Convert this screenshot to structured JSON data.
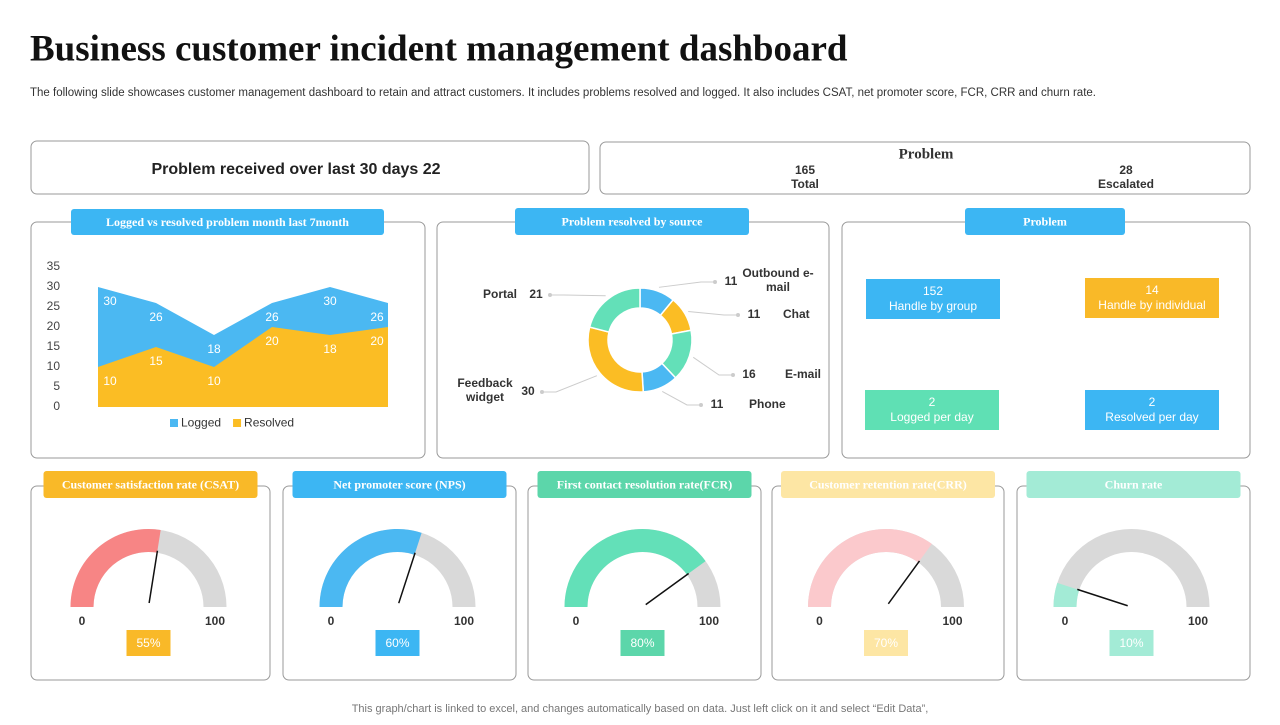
{
  "title": "Business customer incident management dashboard",
  "subtitle": "The following slide showcases customer management dashboard to retain and attract customers. It includes problems resolved and logged. It also includes CSAT, net promoter score, FCR, CRR and churn rate.",
  "summary": "Problem received over last 30 days 22",
  "problem_totals": {
    "title": "Problem",
    "items": [
      {
        "value": 165,
        "label": "Total"
      },
      {
        "value": 28,
        "label": "Escalated"
      }
    ]
  },
  "problem_panel": {
    "title": "Problem",
    "tiles": [
      {
        "value": 152,
        "label": "Handle by group",
        "color": "#3cb6f3"
      },
      {
        "value": 14,
        "label": "Handle by individual",
        "color": "#f9b928"
      },
      {
        "value": 2,
        "label": "Logged per day",
        "color": "#5fe0b4"
      },
      {
        "value": 2,
        "label": "Resolved per day",
        "color": "#3cb6f3"
      }
    ]
  },
  "chart_data": [
    {
      "type": "area",
      "title": "Logged vs resolved problem month last 7month",
      "categories": [
        null,
        null,
        null,
        null,
        null,
        null
      ],
      "series": [
        {
          "name": "Logged",
          "color": "#4bb8f2",
          "values": [
            30,
            26,
            18,
            26,
            30,
            26
          ]
        },
        {
          "name": "Resolved",
          "color": "#fbbd24",
          "values": [
            10,
            15,
            10,
            20,
            18,
            20
          ]
        }
      ],
      "ylim": [
        0,
        35
      ],
      "yticks": [
        0,
        5,
        10,
        15,
        20,
        25,
        30,
        35
      ],
      "grid": false,
      "legend": "bottom"
    },
    {
      "type": "donut",
      "title": "Problem resolved by source",
      "categories": [
        "Outbound e-mail",
        "Chat",
        "E-mail",
        "Phone",
        "Feedback widget",
        "Portal"
      ],
      "values": [
        11,
        11,
        16,
        11,
        30,
        21
      ],
      "colors": [
        "#4bb8f2",
        "#fbbd24",
        "#63e0b8",
        "#4bb8f2",
        "#fbbd24",
        "#63e0b8"
      ]
    },
    {
      "type": "gauge",
      "title": "Customer satisfaction rate (CSAT)",
      "values": [
        55
      ],
      "value_labels": [
        "55%"
      ],
      "ylim": [
        0,
        100
      ],
      "yticks": [
        0,
        100
      ],
      "color": "#f78585",
      "badge_color": "#f9b928"
    },
    {
      "type": "gauge",
      "title": "Net promoter score (NPS)",
      "values": [
        60
      ],
      "value_labels": [
        "60%"
      ],
      "ylim": [
        0,
        100
      ],
      "yticks": [
        0,
        100
      ],
      "color": "#4bb8f2",
      "badge_color": "#3cb6f3"
    },
    {
      "type": "gauge",
      "title": "First contact resolution rate(FCR)",
      "values": [
        80
      ],
      "value_labels": [
        "80%"
      ],
      "ylim": [
        0,
        100
      ],
      "yticks": [
        0,
        100
      ],
      "color": "#63e0b8",
      "badge_color": "#5cd6aa"
    },
    {
      "type": "gauge",
      "title": "Customer retention rate(CRR)",
      "values": [
        70
      ],
      "value_labels": [
        "70%"
      ],
      "ylim": [
        0,
        100
      ],
      "yticks": [
        0,
        100
      ],
      "color": "#fbc9cc",
      "badge_color": "#fde6a4"
    },
    {
      "type": "gauge",
      "title": "Churn rate",
      "values": [
        10
      ],
      "value_labels": [
        "10%"
      ],
      "ylim": [
        0,
        100
      ],
      "yticks": [
        0,
        100
      ],
      "color": "#a3ebd6",
      "badge_color": "#a3ebd6"
    }
  ],
  "footer": "This graph/chart is linked to excel,  and changes automatically based on data. Just left click on it and select “Edit Data”,"
}
